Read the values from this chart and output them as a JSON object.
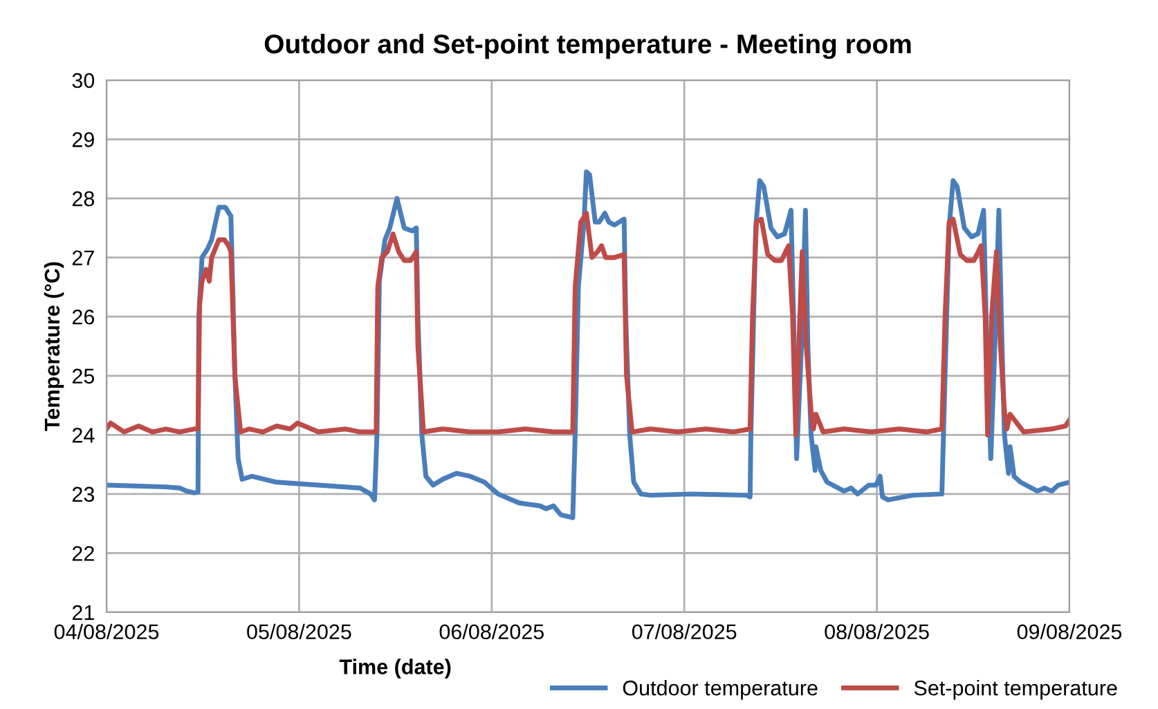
{
  "chart_data": {
    "type": "line",
    "title": "Outdoor and Set-point temperature - Meeting room",
    "xlabel": "Time (date)",
    "ylabel": "Temperature (°C)",
    "xlim": [
      "2025-08-04",
      "2025-08-09"
    ],
    "xticks": [
      {
        "value": "2025-08-04",
        "label": "04/08/2025"
      },
      {
        "value": "2025-08-05",
        "label": "05/08/2025"
      },
      {
        "value": "2025-08-06",
        "label": "06/08/2025"
      },
      {
        "value": "2025-08-07",
        "label": "07/08/2025"
      },
      {
        "value": "2025-08-08",
        "label": "08/08/2025"
      },
      {
        "value": "2025-08-09",
        "label": "09/08/2025"
      }
    ],
    "ylim": [
      21,
      30
    ],
    "yticks": [
      21,
      22,
      23,
      24,
      25,
      26,
      27,
      28,
      29,
      30
    ],
    "grid": true,
    "legend": "bottom right",
    "marker": "none",
    "line_style": "solid",
    "series": [
      {
        "name": "Outdoor temperature",
        "color": "#4a7ebb",
        "x": [
          "2025-08-04T00:00",
          "2025-08-04T07:24",
          "2025-08-04T09:06",
          "2025-08-04T10:00",
          "2025-08-04T10:54",
          "2025-08-04T11:24",
          "2025-08-04T11:30",
          "2025-08-04T11:54",
          "2025-08-04T12:36",
          "2025-08-04T13:06",
          "2025-08-04T14:00",
          "2025-08-04T14:48",
          "2025-08-04T15:30",
          "2025-08-04T16:00",
          "2025-08-04T16:24",
          "2025-08-04T16:54",
          "2025-08-04T18:06",
          "2025-08-04T21:12",
          "2025-08-05T02:24",
          "2025-08-05T07:36",
          "2025-08-05T08:54",
          "2025-08-05T09:24",
          "2025-08-05T09:42",
          "2025-08-05T10:00",
          "2025-08-05T10:42",
          "2025-08-05T11:18",
          "2025-08-05T12:12",
          "2025-08-05T13:06",
          "2025-08-05T14:06",
          "2025-08-05T14:36",
          "2025-08-05T14:48",
          "2025-08-05T15:18",
          "2025-08-05T15:48",
          "2025-08-05T16:42",
          "2025-08-05T17:54",
          "2025-08-05T19:36",
          "2025-08-05T21:18",
          "2025-08-05T23:06",
          "2025-08-06T00:48",
          "2025-08-06T03:24",
          "2025-08-06T06:00",
          "2025-08-06T06:48",
          "2025-08-06T07:42",
          "2025-08-06T08:36",
          "2025-08-06T10:06",
          "2025-08-06T10:24",
          "2025-08-06T10:48",
          "2025-08-06T11:30",
          "2025-08-06T11:48",
          "2025-08-06T12:12",
          "2025-08-06T12:54",
          "2025-08-06T13:24",
          "2025-08-06T14:06",
          "2025-08-06T14:36",
          "2025-08-06T15:18",
          "2025-08-06T16:30",
          "2025-08-06T16:42",
          "2025-08-06T17:12",
          "2025-08-06T17:42",
          "2025-08-06T18:36",
          "2025-08-06T19:48",
          "2025-08-07T00:54",
          "2025-08-07T07:48",
          "2025-08-07T08:12",
          "2025-08-07T08:18",
          "2025-08-07T08:54",
          "2025-08-07T09:24",
          "2025-08-07T09:54",
          "2025-08-07T10:48",
          "2025-08-07T11:36",
          "2025-08-07T12:30",
          "2025-08-07T13:18",
          "2025-08-07T13:42",
          "2025-08-07T14:00",
          "2025-08-07T14:36",
          "2025-08-07T15:06",
          "2025-08-07T15:24",
          "2025-08-07T15:48",
          "2025-08-07T16:18",
          "2025-08-07T16:24",
          "2025-08-07T17:00",
          "2025-08-07T17:48",
          "2025-08-07T19:54",
          "2025-08-07T20:48",
          "2025-08-07T21:36",
          "2025-08-07T23:00",
          "2025-08-07T23:54",
          "2025-08-08T00:24",
          "2025-08-08T00:42",
          "2025-08-08T01:24",
          "2025-08-08T04:30",
          "2025-08-08T08:00",
          "2025-08-08T08:06",
          "2025-08-08T08:30",
          "2025-08-08T09:00",
          "2025-08-08T09:30",
          "2025-08-08T10:00",
          "2025-08-08T10:54",
          "2025-08-08T11:48",
          "2025-08-08T12:36",
          "2025-08-08T13:18",
          "2025-08-08T13:42",
          "2025-08-08T14:12",
          "2025-08-08T14:42",
          "2025-08-08T15:12",
          "2025-08-08T15:36",
          "2025-08-08T15:54",
          "2025-08-08T16:24",
          "2025-08-08T16:36",
          "2025-08-08T17:06",
          "2025-08-08T17:54",
          "2025-08-08T20:00",
          "2025-08-08T20:54",
          "2025-08-08T21:48",
          "2025-08-08T22:36",
          "2025-08-09T00:00"
        ],
        "values": [
          23.15,
          23.12,
          23.1,
          23.05,
          23.02,
          23.03,
          26.0,
          27.0,
          27.15,
          27.3,
          27.85,
          27.85,
          27.7,
          25.0,
          23.6,
          23.25,
          23.3,
          23.2,
          23.15,
          23.1,
          23.0,
          22.9,
          24.0,
          26.6,
          27.3,
          27.5,
          28.0,
          27.5,
          27.45,
          27.5,
          26.0,
          24.0,
          23.3,
          23.15,
          23.25,
          23.35,
          23.3,
          23.2,
          23.0,
          22.85,
          22.8,
          22.75,
          22.8,
          22.65,
          22.6,
          24.0,
          26.5,
          27.6,
          28.45,
          28.4,
          27.6,
          27.6,
          27.75,
          27.6,
          27.55,
          27.65,
          26.0,
          24.0,
          23.2,
          23.0,
          22.98,
          23.0,
          22.98,
          22.95,
          24.0,
          27.5,
          28.3,
          28.2,
          27.5,
          27.35,
          27.4,
          27.8,
          25.5,
          23.6,
          25.5,
          27.8,
          25.5,
          24.0,
          23.4,
          23.8,
          23.4,
          23.2,
          23.05,
          23.1,
          23.0,
          23.15,
          23.15,
          23.3,
          22.95,
          22.9,
          22.98,
          23.0,
          23.0,
          25.0,
          27.5,
          28.3,
          28.2,
          27.5,
          27.35,
          27.4,
          27.8,
          25.5,
          23.6,
          25.5,
          27.8,
          25.5,
          24.0,
          23.35,
          23.8,
          23.3,
          23.2,
          23.05,
          23.1,
          23.05,
          23.15,
          23.2
        ]
      },
      {
        "name": "Set-point temperature",
        "color": "#be4b48",
        "x": [
          "2025-08-04T00:00",
          "2025-08-04T00:30",
          "2025-08-04T02:12",
          "2025-08-04T04:00",
          "2025-08-04T05:42",
          "2025-08-04T07:24",
          "2025-08-04T09:06",
          "2025-08-04T10:54",
          "2025-08-04T11:24",
          "2025-08-04T11:36",
          "2025-08-04T11:54",
          "2025-08-04T12:24",
          "2025-08-04T12:48",
          "2025-08-04T13:06",
          "2025-08-04T14:00",
          "2025-08-04T14:42",
          "2025-08-04T15:12",
          "2025-08-04T15:30",
          "2025-08-04T16:00",
          "2025-08-04T16:42",
          "2025-08-04T17:48",
          "2025-08-04T19:30",
          "2025-08-04T21:12",
          "2025-08-04T22:54",
          "2025-08-04T23:48",
          "2025-08-05T02:24",
          "2025-08-05T05:48",
          "2025-08-05T07:36",
          "2025-08-05T09:36",
          "2025-08-05T09:48",
          "2025-08-05T10:18",
          "2025-08-05T11:00",
          "2025-08-05T11:42",
          "2025-08-05T12:24",
          "2025-08-05T13:06",
          "2025-08-05T13:54",
          "2025-08-05T14:36",
          "2025-08-05T14:48",
          "2025-08-05T15:30",
          "2025-08-05T17:54",
          "2025-08-05T21:18",
          "2025-08-05T23:54",
          "2025-08-06T00:48",
          "2025-08-06T04:12",
          "2025-08-06T07:42",
          "2025-08-06T10:06",
          "2025-08-06T10:24",
          "2025-08-06T11:06",
          "2025-08-06T11:48",
          "2025-08-06T12:30",
          "2025-08-06T13:12",
          "2025-08-06T13:42",
          "2025-08-06T14:12",
          "2025-08-06T15:18",
          "2025-08-06T16:30",
          "2025-08-06T16:48",
          "2025-08-06T17:30",
          "2025-08-06T19:48",
          "2025-08-06T23:12",
          "2025-08-07T02:42",
          "2025-08-07T06:06",
          "2025-08-07T08:12",
          "2025-08-07T08:30",
          "2025-08-07T09:00",
          "2025-08-07T09:36",
          "2025-08-07T10:24",
          "2025-08-07T11:18",
          "2025-08-07T12:06",
          "2025-08-07T13:00",
          "2025-08-07T13:30",
          "2025-08-07T13:54",
          "2025-08-07T14:24",
          "2025-08-07T14:42",
          "2025-08-07T15:12",
          "2025-08-07T15:48",
          "2025-08-07T16:06",
          "2025-08-07T16:24",
          "2025-08-07T17:18",
          "2025-08-07T19:54",
          "2025-08-07T23:18",
          "2025-08-08T02:48",
          "2025-08-08T06:12",
          "2025-08-08T08:06",
          "2025-08-08T08:30",
          "2025-08-08T09:00",
          "2025-08-08T09:30",
          "2025-08-08T10:24",
          "2025-08-08T11:12",
          "2025-08-08T12:06",
          "2025-08-08T13:00",
          "2025-08-08T13:30",
          "2025-08-08T13:48",
          "2025-08-08T14:18",
          "2025-08-08T14:54",
          "2025-08-08T15:24",
          "2025-08-08T15:54",
          "2025-08-08T16:12",
          "2025-08-08T16:36",
          "2025-08-08T18:18",
          "2025-08-08T21:48",
          "2025-08-08T23:30",
          "2025-08-09T00:00"
        ],
        "values": [
          24.1,
          24.2,
          24.05,
          24.15,
          24.05,
          24.1,
          24.05,
          24.1,
          24.1,
          26.2,
          26.6,
          26.8,
          26.6,
          27.0,
          27.3,
          27.3,
          27.2,
          27.1,
          25.0,
          24.05,
          24.1,
          24.05,
          24.15,
          24.1,
          24.2,
          24.05,
          24.1,
          24.05,
          24.05,
          26.5,
          27.0,
          27.1,
          27.4,
          27.1,
          26.95,
          26.95,
          27.1,
          25.5,
          24.05,
          24.1,
          24.05,
          24.05,
          24.05,
          24.1,
          24.05,
          24.05,
          26.5,
          27.6,
          27.75,
          27.0,
          27.1,
          27.2,
          27.0,
          27.0,
          27.05,
          25.0,
          24.05,
          24.1,
          24.05,
          24.1,
          24.05,
          24.1,
          26.0,
          27.6,
          27.65,
          27.05,
          26.95,
          26.95,
          27.2,
          26.0,
          24.0,
          26.0,
          27.1,
          25.5,
          24.4,
          24.1,
          24.35,
          24.05,
          24.1,
          24.05,
          24.1,
          24.05,
          24.1,
          26.0,
          27.6,
          27.65,
          27.05,
          26.95,
          26.95,
          27.2,
          26.0,
          24.0,
          26.0,
          27.1,
          25.5,
          24.4,
          24.1,
          24.35,
          24.05,
          24.1,
          24.15,
          24.25
        ]
      }
    ]
  }
}
